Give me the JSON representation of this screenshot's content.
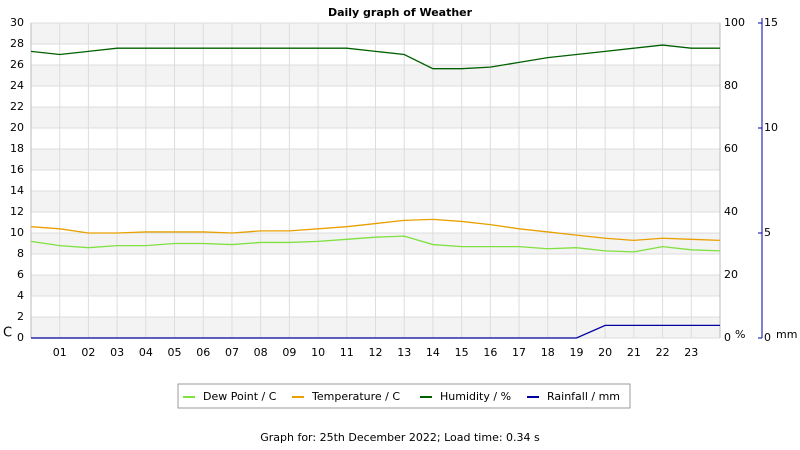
{
  "chart_data": {
    "type": "line",
    "title": "Daily graph of Weather",
    "caption": "Graph for: 25th December 2022; Load time: 0.34 s",
    "ylabel": "C",
    "y2label": "%",
    "y3label": "mm",
    "x": [
      0,
      1,
      2,
      3,
      4,
      5,
      6,
      7,
      8,
      9,
      10,
      11,
      12,
      13,
      14,
      15,
      16,
      17,
      18,
      19,
      20,
      21,
      22,
      23,
      24
    ],
    "xlim": [
      0,
      24
    ],
    "xticks": [
      {
        "value": 1,
        "label": "01"
      },
      {
        "value": 2,
        "label": "02"
      },
      {
        "value": 3,
        "label": "03"
      },
      {
        "value": 4,
        "label": "04"
      },
      {
        "value": 5,
        "label": "05"
      },
      {
        "value": 6,
        "label": "06"
      },
      {
        "value": 7,
        "label": "07"
      },
      {
        "value": 8,
        "label": "08"
      },
      {
        "value": 9,
        "label": "09"
      },
      10,
      11,
      12,
      13,
      14,
      15,
      16,
      17,
      18,
      19,
      20,
      21,
      22,
      23
    ],
    "ylim": [
      0,
      30
    ],
    "yticks": [
      0,
      2,
      4,
      6,
      8,
      10,
      12,
      14,
      16,
      18,
      20,
      22,
      24,
      26,
      28,
      30
    ],
    "y2lim": [
      0,
      100
    ],
    "y2ticks": [
      0,
      20,
      40,
      60,
      80,
      100
    ],
    "y3lim": [
      0,
      15
    ],
    "y3ticks": [
      0,
      5,
      10,
      15
    ],
    "grid": true,
    "axis_colors": {
      "y": "#e8a000",
      "y2": "#006000",
      "y3": "#0000a0"
    },
    "series": [
      {
        "name": "Dew Point / C",
        "color": "#80e040",
        "axis": "y",
        "values": [
          9.2,
          8.8,
          8.6,
          8.8,
          8.8,
          9.0,
          9.0,
          8.9,
          9.1,
          9.1,
          9.2,
          9.4,
          9.6,
          9.7,
          8.9,
          8.7,
          8.7,
          8.7,
          8.5,
          8.6,
          8.3,
          8.2,
          8.7,
          8.4,
          8.3
        ]
      },
      {
        "name": "Temperature / C",
        "color": "#e8a000",
        "axis": "y",
        "values": [
          10.6,
          10.4,
          10.0,
          10.0,
          10.1,
          10.1,
          10.1,
          10.0,
          10.2,
          10.2,
          10.4,
          10.6,
          10.9,
          11.2,
          11.3,
          11.1,
          10.8,
          10.4,
          10.1,
          9.8,
          9.5,
          9.3,
          9.5,
          9.4,
          9.3
        ]
      },
      {
        "name": "Humidity / %",
        "color": "#006000",
        "axis": "y2",
        "values": [
          91,
          90,
          91,
          92,
          92,
          92,
          92,
          92,
          92,
          92,
          92,
          92,
          91,
          90,
          85.5,
          85.5,
          86,
          87.5,
          89,
          90,
          91,
          92,
          93,
          92,
          92
        ]
      },
      {
        "name": "Rainfall / mm",
        "color": "#0000a0",
        "axis": "y3",
        "values": [
          0,
          0,
          0,
          0,
          0,
          0,
          0,
          0,
          0,
          0,
          0,
          0,
          0,
          0,
          0,
          0,
          0,
          0,
          0,
          0,
          0.6,
          0.6,
          0.6,
          0.6,
          0.6
        ]
      }
    ]
  }
}
